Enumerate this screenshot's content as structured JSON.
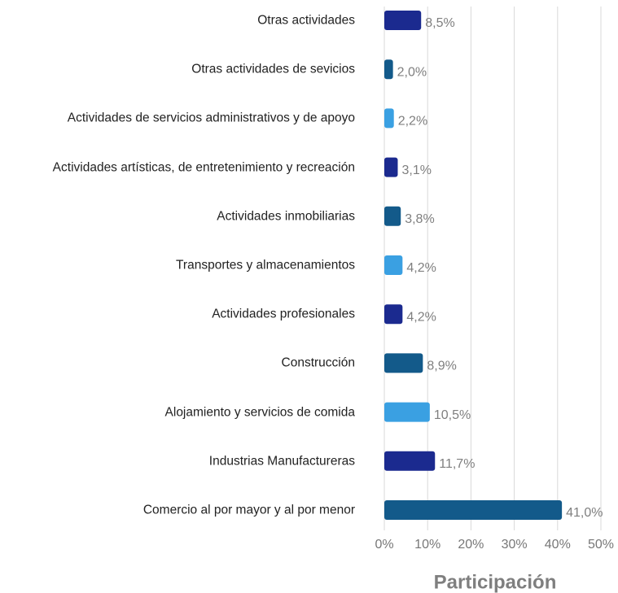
{
  "chart_data": {
    "type": "barh",
    "categories": [
      "Otras actividades",
      "Otras actividades de sevicios",
      "Actividades de servicios administrativos y de apoyo",
      "Actividades artísticas, de entretenimiento y recreación",
      "Actividades inmobiliarias",
      "Transportes y almacenamientos",
      "Actividades profesionales",
      "Construcción",
      "Alojamiento y servicios de comida",
      "Industrias Manufactureras",
      "Comercio al por mayor y al por menor"
    ],
    "values": [
      8.5,
      2.0,
      2.2,
      3.1,
      3.8,
      4.2,
      4.2,
      8.9,
      10.5,
      11.7,
      41.0
    ],
    "value_labels": [
      "8,5%",
      "2,0%",
      "2,2%",
      "3,1%",
      "3,8%",
      "4,2%",
      "4,2%",
      "8,9%",
      "10,5%",
      "11,7%",
      "41,0%"
    ],
    "colors": [
      "#1b2a8f",
      "#135a8a",
      "#3aa0e2",
      "#1b2a8f",
      "#135a8a",
      "#3aa0e2",
      "#1b2a8f",
      "#135a8a",
      "#3aa0e2",
      "#1b2a8f",
      "#135a8a"
    ],
    "xlabel": "Participación",
    "xlim": [
      0,
      50
    ],
    "xticks": [
      {
        "value": 0,
        "label": "0%"
      },
      {
        "value": 10,
        "label": "10%"
      },
      {
        "value": 20,
        "label": "20%"
      },
      {
        "value": 30,
        "label": "30%"
      },
      {
        "value": 40,
        "label": "40%"
      },
      {
        "value": 50,
        "label": "50%"
      }
    ],
    "grid": true
  }
}
